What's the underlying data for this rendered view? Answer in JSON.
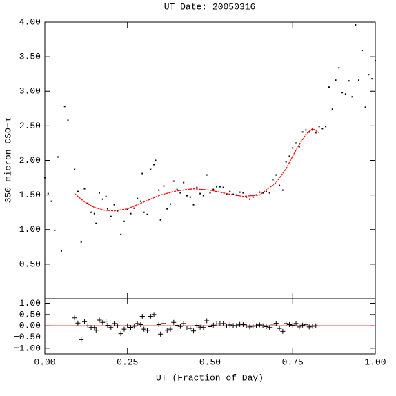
{
  "chart_data": [
    {
      "type": "scatter",
      "title": "UT Date: 20050316",
      "ylabel": "350 micron CSO−τ",
      "xlim": [
        0,
        1
      ],
      "ylim": [
        0,
        4
      ],
      "xticks": [
        {
          "value": 0,
          "label": "0.00"
        },
        {
          "value": 0.25,
          "label": "0.25"
        },
        {
          "value": 0.5,
          "label": "0.50"
        },
        {
          "value": 0.75,
          "label": "0.75"
        },
        {
          "value": 1,
          "label": "1.00"
        }
      ],
      "yticks": [
        {
          "value": 0.5,
          "label": "0.50"
        },
        {
          "value": 1,
          "label": "1.00"
        },
        {
          "value": 1.5,
          "label": "1.50"
        },
        {
          "value": 2,
          "label": "2.00"
        },
        {
          "value": 2.5,
          "label": "2.50"
        },
        {
          "value": 3,
          "label": "3.00"
        },
        {
          "value": 3.5,
          "label": "3.50"
        },
        {
          "value": 4,
          "label": "4.00"
        }
      ],
      "series": [
        {
          "mode": "points",
          "marker": "dot",
          "color": "#000000",
          "x": [
            0.0,
            0.01,
            0.02,
            0.03,
            0.04,
            0.05,
            0.06,
            0.07,
            0.09,
            0.1,
            0.11,
            0.12,
            0.13,
            0.14,
            0.15,
            0.155,
            0.165,
            0.175,
            0.185,
            0.19,
            0.2,
            0.21,
            0.22,
            0.23,
            0.24,
            0.25,
            0.26,
            0.27,
            0.28,
            0.29,
            0.295,
            0.3,
            0.31,
            0.32,
            0.33,
            0.335,
            0.345,
            0.35,
            0.36,
            0.37,
            0.38,
            0.39,
            0.4,
            0.41,
            0.42,
            0.43,
            0.44,
            0.45,
            0.46,
            0.47,
            0.48,
            0.49,
            0.5,
            0.51,
            0.52,
            0.53,
            0.54,
            0.55,
            0.56,
            0.57,
            0.58,
            0.59,
            0.6,
            0.61,
            0.62,
            0.63,
            0.64,
            0.65,
            0.66,
            0.67,
            0.68,
            0.69,
            0.7,
            0.71,
            0.72,
            0.73,
            0.74,
            0.75,
            0.76,
            0.77,
            0.78,
            0.79,
            0.8,
            0.81,
            0.82,
            0.83,
            0.84,
            0.85,
            0.86,
            0.87,
            0.88,
            0.89,
            0.9,
            0.91,
            0.92,
            0.93,
            0.94,
            0.95,
            0.96,
            0.97,
            0.98,
            0.99,
            1.0
          ],
          "values": [
            1.75,
            1.52,
            1.41,
            0.99,
            2.05,
            0.69,
            2.78,
            2.58,
            1.87,
            1.55,
            0.82,
            1.59,
            1.38,
            1.25,
            1.23,
            1.09,
            1.53,
            1.44,
            1.48,
            1.3,
            1.19,
            1.36,
            1.27,
            0.93,
            1.12,
            1.29,
            1.23,
            1.31,
            1.45,
            1.41,
            1.81,
            1.25,
            1.22,
            1.87,
            1.94,
            2.0,
            1.57,
            1.14,
            1.63,
            1.3,
            1.37,
            1.7,
            1.58,
            1.53,
            1.68,
            1.49,
            1.47,
            1.36,
            1.61,
            1.52,
            1.49,
            1.79,
            1.53,
            1.58,
            1.62,
            1.62,
            1.61,
            1.51,
            1.55,
            1.51,
            1.5,
            1.54,
            1.53,
            1.47,
            1.44,
            1.47,
            1.5,
            1.54,
            1.53,
            1.55,
            1.53,
            1.72,
            1.79,
            1.64,
            1.57,
            1.98,
            2.06,
            2.18,
            2.25,
            2.2,
            2.41,
            2.44,
            2.41,
            2.44,
            2.4,
            2.49,
            2.46,
            2.49,
            3.06,
            2.74,
            3.16,
            3.34,
            2.98,
            2.96,
            3.15,
            2.92,
            3.96,
            3.16,
            3.59,
            2.77,
            3.24,
            3.18,
            3.44
          ]
        },
        {
          "mode": "line",
          "color": "#ff0000",
          "x": [
            0.09,
            0.12,
            0.15,
            0.18,
            0.21,
            0.25,
            0.3,
            0.35,
            0.4,
            0.45,
            0.5,
            0.55,
            0.6,
            0.65,
            0.7,
            0.73,
            0.76,
            0.79,
            0.81,
            0.83
          ],
          "values": [
            1.52,
            1.4,
            1.32,
            1.28,
            1.27,
            1.3,
            1.4,
            1.5,
            1.56,
            1.59,
            1.57,
            1.52,
            1.48,
            1.5,
            1.68,
            1.88,
            2.15,
            2.38,
            2.46,
            2.4
          ]
        }
      ]
    },
    {
      "type": "scatter",
      "xlabel": "UT (Fraction of Day)",
      "xlim": [
        0,
        1
      ],
      "ylim": [
        -1.25,
        1.2
      ],
      "xticks": [
        {
          "value": 0,
          "label": "0.00"
        },
        {
          "value": 0.25,
          "label": "0.25"
        },
        {
          "value": 0.5,
          "label": "0.50"
        },
        {
          "value": 0.75,
          "label": "0.75"
        },
        {
          "value": 1,
          "label": "1.00"
        }
      ],
      "yticks": [
        {
          "value": -1,
          "label": "−1.00"
        },
        {
          "value": -0.5,
          "label": "−0.50"
        },
        {
          "value": 0,
          "label": "0.00"
        },
        {
          "value": 0.5,
          "label": "0.50"
        },
        {
          "value": 1,
          "label": "1.00"
        }
      ],
      "reference_line": {
        "value": 0,
        "color": "#ff0000"
      },
      "series": [
        {
          "mode": "points",
          "marker": "plus",
          "color": "#000000",
          "x": [
            0.09,
            0.1,
            0.11,
            0.12,
            0.13,
            0.14,
            0.15,
            0.155,
            0.165,
            0.175,
            0.185,
            0.19,
            0.2,
            0.21,
            0.22,
            0.23,
            0.24,
            0.25,
            0.26,
            0.27,
            0.28,
            0.29,
            0.295,
            0.3,
            0.31,
            0.32,
            0.33,
            0.345,
            0.35,
            0.36,
            0.37,
            0.38,
            0.39,
            0.4,
            0.41,
            0.42,
            0.43,
            0.44,
            0.45,
            0.46,
            0.47,
            0.48,
            0.49,
            0.5,
            0.51,
            0.52,
            0.53,
            0.54,
            0.55,
            0.56,
            0.57,
            0.58,
            0.59,
            0.6,
            0.61,
            0.62,
            0.63,
            0.64,
            0.65,
            0.66,
            0.67,
            0.68,
            0.69,
            0.7,
            0.71,
            0.72,
            0.73,
            0.74,
            0.75,
            0.76,
            0.77,
            0.78,
            0.79,
            0.8,
            0.81,
            0.82
          ],
          "values": [
            0.35,
            0.12,
            -0.62,
            0.18,
            0.0,
            -0.08,
            -0.08,
            -0.2,
            0.25,
            0.15,
            0.2,
            0.02,
            -0.08,
            0.1,
            0.0,
            -0.35,
            -0.15,
            0.0,
            -0.07,
            -0.02,
            0.1,
            0.05,
            0.42,
            -0.15,
            -0.2,
            0.42,
            0.5,
            0.05,
            -0.37,
            0.1,
            -0.2,
            -0.15,
            0.15,
            0.02,
            -0.03,
            0.1,
            -0.1,
            -0.12,
            -0.23,
            0.02,
            -0.06,
            -0.08,
            0.22,
            -0.04,
            0.03,
            0.08,
            0.09,
            0.1,
            -0.01,
            0.04,
            0.01,
            0.01,
            0.06,
            0.05,
            -0.01,
            -0.05,
            -0.02,
            0.0,
            0.04,
            0.0,
            -0.04,
            -0.08,
            0.07,
            0.11,
            -0.12,
            -0.25,
            0.1,
            0.05,
            0.03,
            0.1,
            -0.05,
            0.03,
            0.06,
            -0.05,
            -0.02,
            0.0
          ]
        }
      ]
    }
  ]
}
